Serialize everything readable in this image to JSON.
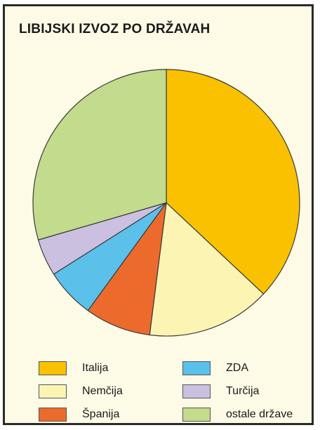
{
  "chart_data": {
    "type": "pie",
    "title": "LIBIJSKI IZVOZ PO DRŽAVAH",
    "slices": [
      {
        "label": "Italija",
        "value": 37,
        "color": "#f9c100"
      },
      {
        "label": "Nemčija",
        "value": 15,
        "color": "#fbf4b3"
      },
      {
        "label": "Španija",
        "value": 8,
        "color": "#ec6b2c"
      },
      {
        "label": "ZDA",
        "value": 6,
        "color": "#5bc0ea"
      },
      {
        "label": "Turčija",
        "value": 4.5,
        "color": "#cbc0e0"
      },
      {
        "label": "ostale države",
        "value": 29.5,
        "color": "#c3db8c"
      }
    ],
    "legend_placement": "bottom"
  },
  "legend": {
    "left": [
      {
        "label": "Italija",
        "color": "#f9c100"
      },
      {
        "label": "Nemčija",
        "color": "#fbf4b3"
      },
      {
        "label": "Španija",
        "color": "#ec6b2c"
      }
    ],
    "right": [
      {
        "label": "ZDA",
        "color": "#5bc0ea"
      },
      {
        "label": "Turčija",
        "color": "#cbc0e0"
      },
      {
        "label": "ostale države",
        "color": "#c3db8c"
      }
    ]
  }
}
